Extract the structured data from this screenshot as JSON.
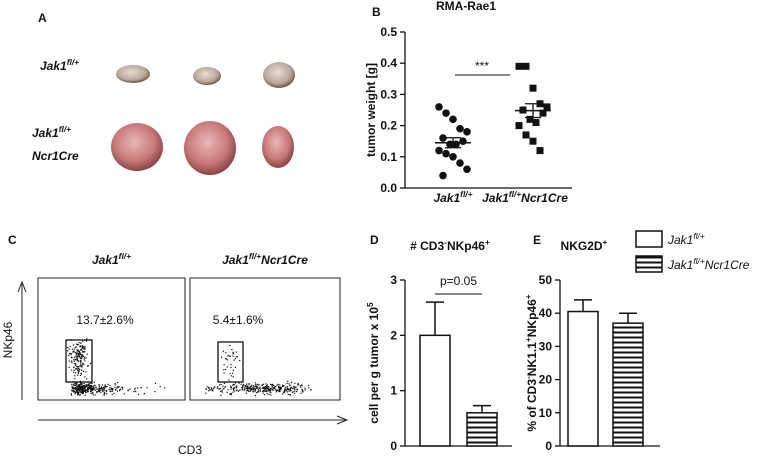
{
  "panel_labels": [
    "A",
    "B",
    "C",
    "D",
    "E"
  ],
  "tumor_photos": {
    "rows": [
      {
        "lines": [
          [
            {
              "text": "Jak1"
            },
            {
              "text": "fl/+",
              "sup": true
            }
          ]
        ]
      },
      {
        "lines": [
          [
            {
              "text": "Jak1"
            },
            {
              "text": "fl/+",
              "sup": true
            }
          ],
          [
            {
              "text": "Ncr1Cre"
            }
          ]
        ]
      }
    ]
  },
  "flow": {
    "plots": [
      {
        "title": [
          {
            "text": "Jak1"
          },
          {
            "text": "fl/+",
            "sup": true
          }
        ],
        "gate_label": "13.7±2.6%"
      },
      {
        "title": [
          {
            "text": "Jak1"
          },
          {
            "text": "fl/+",
            "sup": true
          },
          {
            "text": "Ncr1Cre"
          }
        ],
        "gate_label": "5.4±1.6%"
      }
    ],
    "y_label": "NKp46",
    "x_label": "CD3"
  },
  "chart_data": [
    {
      "type": "strip",
      "title": "RMA-Rae1",
      "y_label": "tumor weight [g]",
      "categories": [
        [
          {
            "text": "Jak1"
          },
          {
            "text": "fl/+",
            "sup": true
          }
        ],
        [
          {
            "text": "Jak1"
          },
          {
            "text": "fl/+",
            "sup": true
          },
          {
            "text": "Ncr1Cre"
          }
        ]
      ],
      "groups": [
        {
          "values": [
            0.26,
            0.24,
            0.22,
            0.19,
            0.18,
            0.16,
            0.15,
            0.14,
            0.14,
            0.12,
            0.11,
            0.1,
            0.08,
            0.06,
            0.04
          ],
          "mean": 0.145,
          "sem": 0.016,
          "marker": "circle"
        },
        {
          "values": [
            0.39,
            0.39,
            0.32,
            0.27,
            0.26,
            0.25,
            0.24,
            0.22,
            0.21,
            0.2,
            0.17,
            0.15,
            0.12
          ],
          "mean": 0.248,
          "sem": 0.022,
          "marker": "square"
        }
      ],
      "significance": "***",
      "ylim": [
        0,
        0.5
      ],
      "yticks": [
        {
          "value": 0,
          "label": "0.0"
        },
        0.1,
        0.2,
        0.3,
        0.4,
        0.5
      ]
    },
    {
      "type": "bar",
      "title": [
        {
          "text": "# CD3"
        },
        {
          "text": "-",
          "sup": true
        },
        {
          "text": "NKp46"
        },
        {
          "text": "+",
          "sup": true
        }
      ],
      "y_label": [
        {
          "text": "cell per g tumor x 10"
        },
        {
          "text": "5",
          "sup": true
        }
      ],
      "categories": [
        null,
        null
      ],
      "values": [
        2.0,
        0.6
      ],
      "errors": [
        0.6,
        0.13
      ],
      "patterns": [
        "open",
        "striped"
      ],
      "annotation": "p=0.05",
      "ylim": [
        0,
        3
      ],
      "yticks": [
        0,
        1,
        2,
        3
      ]
    },
    {
      "type": "bar",
      "title": [
        {
          "text": "NKG2D"
        },
        {
          "text": "+",
          "sup": true
        }
      ],
      "y_label": [
        {
          "text": "% of CD3"
        },
        {
          "text": "-",
          "sup": true
        },
        {
          "text": "NK1.1"
        },
        {
          "text": "+",
          "sup": true
        },
        {
          "text": "NKp46"
        },
        {
          "text": "+",
          "sup": true
        }
      ],
      "categories": [
        null,
        null
      ],
      "values": [
        40.5,
        37
      ],
      "errors": [
        3.5,
        3
      ],
      "patterns": [
        "open",
        "striped"
      ],
      "ylim": [
        0,
        50
      ],
      "yticks": [
        0,
        10,
        20,
        30,
        40,
        50
      ],
      "legend": [
        {
          "name": [
            {
              "text": "Jak1"
            },
            {
              "text": "fl/+",
              "sup": true
            }
          ],
          "pattern": "open"
        },
        {
          "name": [
            {
              "text": "Jak1"
            },
            {
              "text": "fl/+",
              "sup": true
            },
            {
              "text": "Ncr1Cre"
            }
          ],
          "pattern": "striped"
        }
      ]
    }
  ]
}
